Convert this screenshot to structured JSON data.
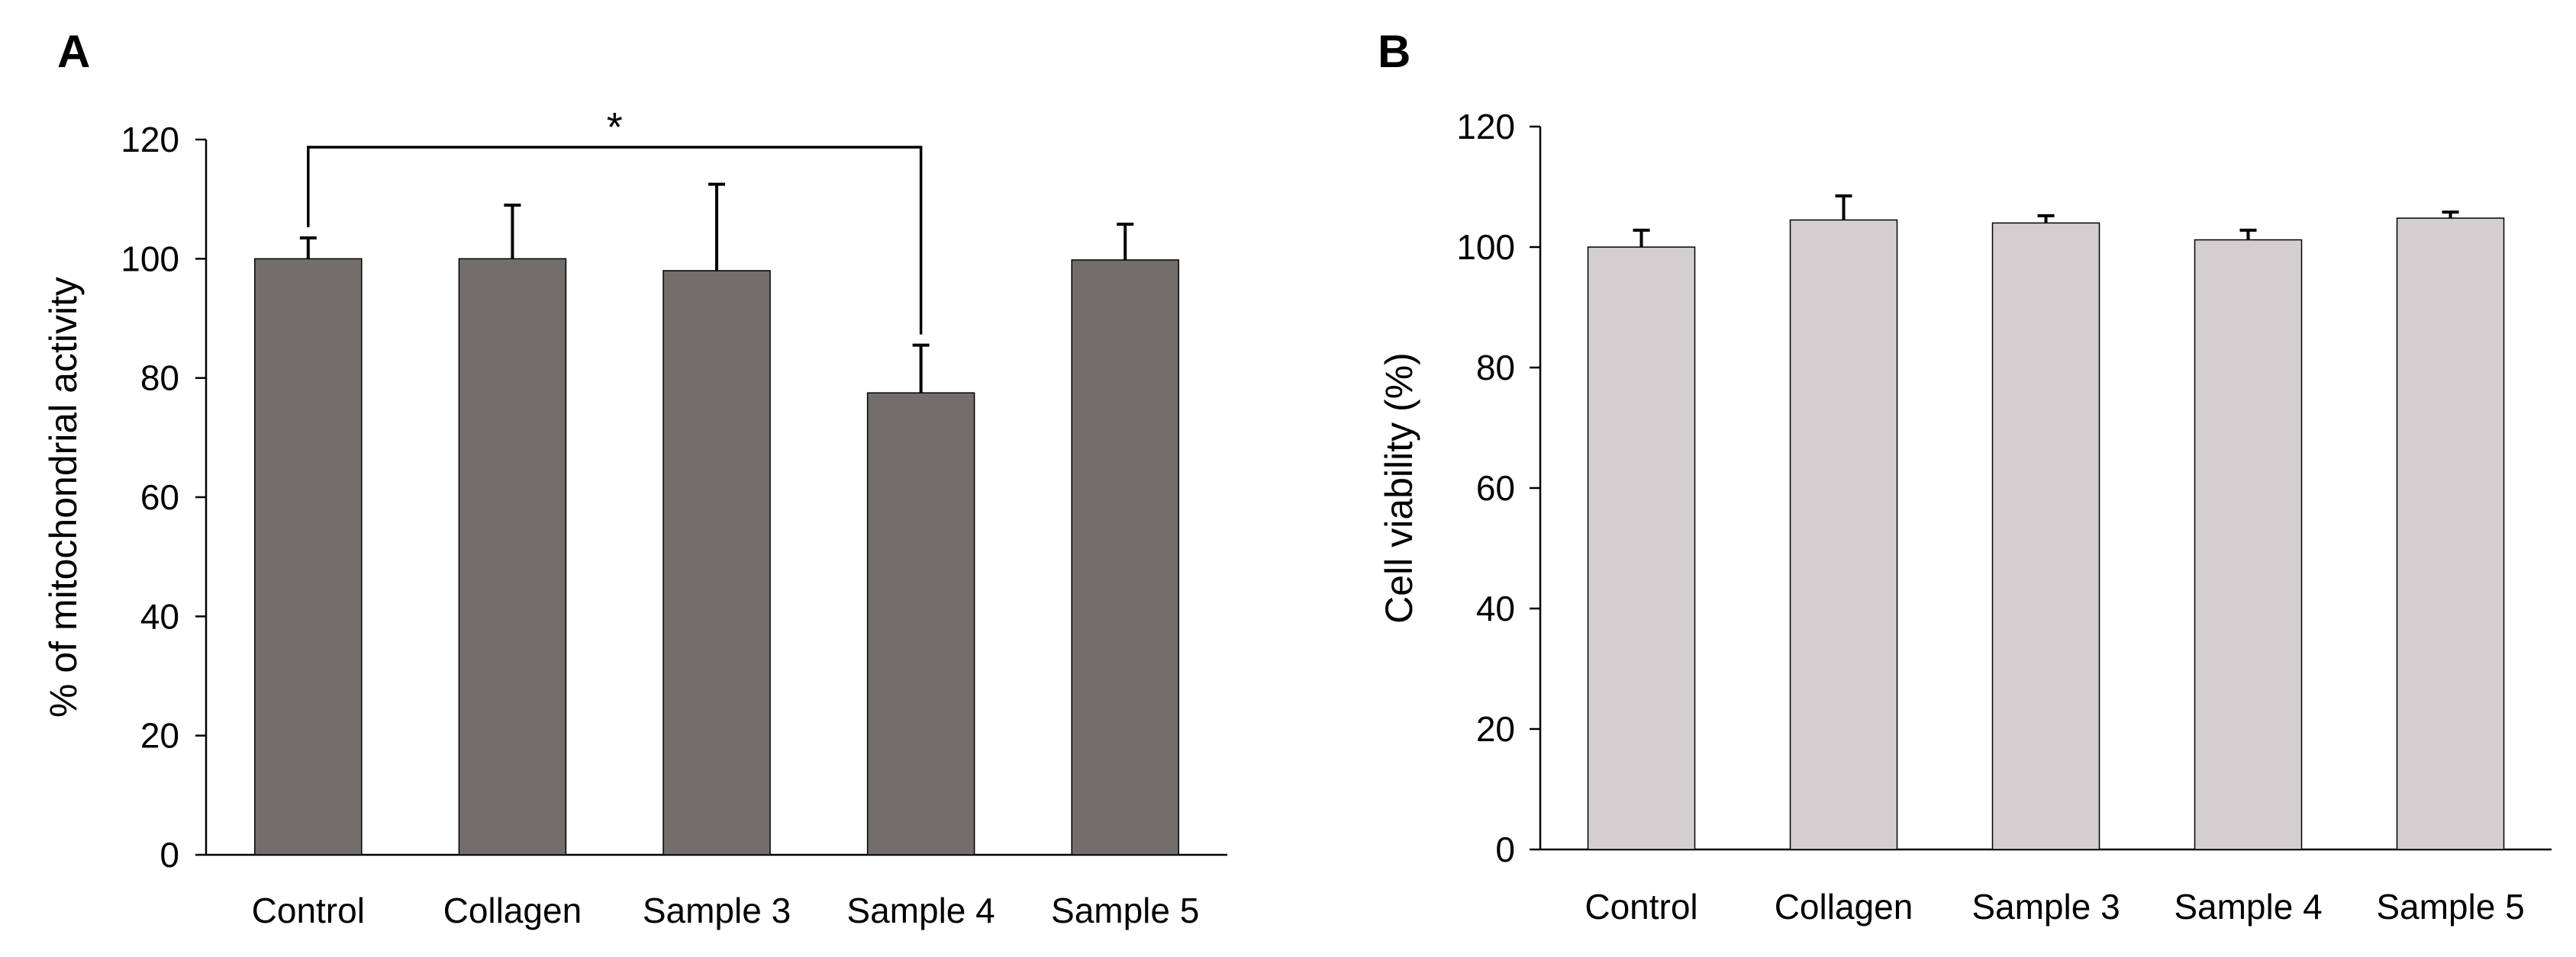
{
  "chart_data": [
    {
      "panel": "A",
      "type": "bar",
      "title": "",
      "xlabel": "",
      "ylabel": "% of mitochondrial activity",
      "ylim": [
        0,
        120
      ],
      "yticks": [
        0,
        20,
        40,
        60,
        80,
        100,
        120
      ],
      "categories": [
        "Control",
        "Collagen",
        "Sample 3",
        "Sample 4",
        "Sample 5"
      ],
      "values": [
        100,
        100,
        98,
        77.5,
        99.8
      ],
      "errors": [
        3.5,
        9,
        14.5,
        8,
        6
      ],
      "bar_color": "#736e6b",
      "significance": {
        "from": 0,
        "to": 3,
        "label": "*"
      },
      "grid": false
    },
    {
      "panel": "B",
      "type": "bar",
      "title": "",
      "xlabel": "",
      "ylabel": "Cell viability (%)",
      "ylim": [
        0,
        120
      ],
      "yticks": [
        0,
        20,
        40,
        60,
        80,
        100,
        120
      ],
      "categories": [
        "Control",
        "Collagen",
        "Sample 3",
        "Sample 4",
        "Sample 5"
      ],
      "values": [
        100,
        104.5,
        104,
        101.2,
        104.8
      ],
      "errors": [
        2.8,
        4,
        1.2,
        1.6,
        1
      ],
      "bar_color": "#d3cfd0",
      "grid": false
    }
  ]
}
